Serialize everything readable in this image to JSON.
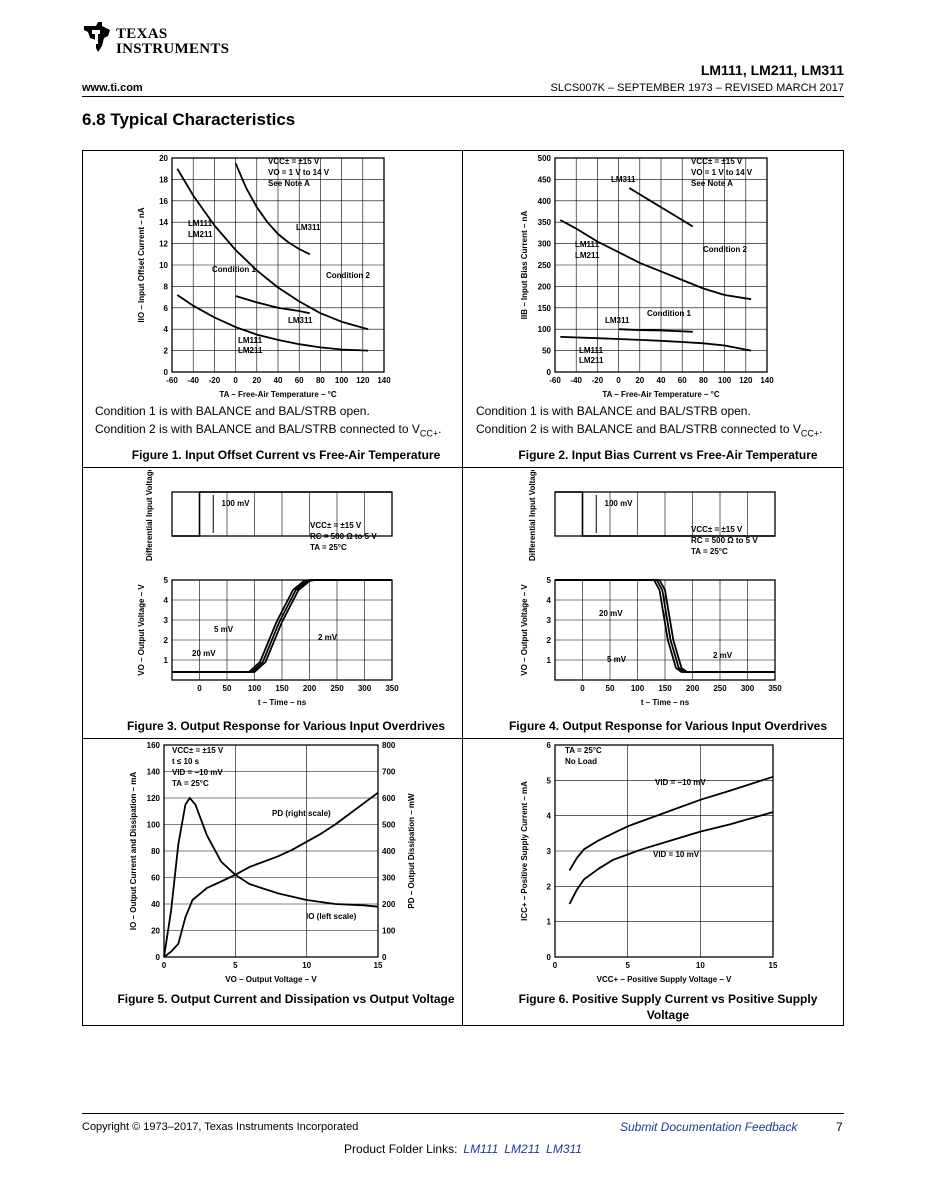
{
  "header": {
    "brand_line1": "TEXAS",
    "brand_line2": "INSTRUMENTS",
    "parts": "LM111, LM211, LM311",
    "site": "www.ti.com",
    "doc_id": "SLCS007K – SEPTEMBER 1973 – REVISED MARCH 2017"
  },
  "section_title": "6.8 Typical Characteristics",
  "figures": {
    "fig1": {
      "caption": "Figure 1. Input Offset Current vs Free-Air Temperature",
      "note1": "Condition 1 is with BALANCE and BAL/STRB open.",
      "note2_pre": "Condition 2 is with BALANCE and BAL/STRB connected to V",
      "note2_sub": "CC+",
      "note2_post": "."
    },
    "fig2": {
      "caption": "Figure 2. Input Bias Current vs Free-Air Temperature",
      "note1": "Condition 1 is with BALANCE and BAL/STRB open.",
      "note2_pre": "Condition 2 is with BALANCE and BAL/STRB connected to V",
      "note2_sub": "CC+",
      "note2_post": "."
    },
    "fig3": {
      "caption": "Figure 3. Output Response for Various Input Overdrives"
    },
    "fig4": {
      "caption": "Figure 4. Output Response for Various Input Overdrives"
    },
    "fig5": {
      "caption": "Figure 5. Output Current and Dissipation vs Output Voltage"
    },
    "fig6": {
      "caption_line1": "Figure 6. Positive Supply Current vs Positive Supply",
      "caption_line2": "Voltage"
    }
  },
  "chart_data": [
    {
      "id": "fig1",
      "type": "line",
      "xlabel": "TA – Free-Air Temperature – °C",
      "ylabel": "IIO – Input Offset Current – nA",
      "xlim": [
        -60,
        140
      ],
      "ylim": [
        0,
        20
      ],
      "xticks": [
        -60,
        -40,
        -20,
        0,
        20,
        40,
        60,
        80,
        100,
        120,
        140
      ],
      "yticks": [
        0,
        2,
        4,
        6,
        8,
        10,
        12,
        14,
        16,
        18,
        20
      ],
      "conditions": [
        "VCC± = ±15 V",
        "VO = 1 V to 14 V",
        "See Note A"
      ],
      "series": [
        {
          "name": "LM311 Condition 2",
          "x": [
            0,
            10,
            20,
            30,
            40,
            50,
            60,
            70
          ],
          "y": [
            19.5,
            17.2,
            15.4,
            14.0,
            12.9,
            12.1,
            11.5,
            11.0
          ]
        },
        {
          "name": "LM111/LM211 Condition 2",
          "x": [
            -55,
            -40,
            -20,
            0,
            20,
            40,
            60,
            80,
            100,
            125
          ],
          "y": [
            19,
            16.5,
            13.7,
            11.4,
            9.5,
            7.9,
            6.6,
            5.5,
            4.7,
            4.0
          ]
        },
        {
          "name": "LM311 Condition 1",
          "x": [
            0,
            20,
            40,
            60,
            70
          ],
          "y": [
            7.1,
            6.5,
            6.0,
            5.7,
            5.5
          ]
        },
        {
          "name": "LM111/LM211 Condition 1",
          "x": [
            -55,
            -40,
            -20,
            0,
            20,
            40,
            60,
            80,
            100,
            125
          ],
          "y": [
            7.2,
            6.2,
            5.1,
            4.2,
            3.5,
            3.0,
            2.6,
            2.3,
            2.1,
            2.0
          ]
        }
      ],
      "annotations": [
        "LM111",
        "LM211",
        "LM311",
        "Condition 1",
        "Condition 2",
        "LM311",
        "LM111",
        "LM211"
      ]
    },
    {
      "id": "fig2",
      "type": "line",
      "xlabel": "TA – Free-Air Temperature – °C",
      "ylabel": "IIB – Input Bias Current – nA",
      "xlim": [
        -60,
        140
      ],
      "ylim": [
        0,
        500
      ],
      "xticks": [
        -60,
        -40,
        -20,
        0,
        20,
        40,
        60,
        80,
        100,
        120,
        140
      ],
      "yticks": [
        0,
        50,
        100,
        150,
        200,
        250,
        300,
        350,
        400,
        450,
        500
      ],
      "conditions": [
        "VCC± = ±15 V",
        "VO = 1 V to 14 V",
        "See Note A"
      ],
      "series": [
        {
          "name": "LM311 Condition 2",
          "x": [
            10,
            30,
            50,
            70
          ],
          "y": [
            430,
            400,
            370,
            340
          ]
        },
        {
          "name": "LM111/LM211 Condition 2",
          "x": [
            -55,
            -40,
            -20,
            0,
            20,
            40,
            60,
            80,
            100,
            125
          ],
          "y": [
            355,
            335,
            305,
            280,
            255,
            235,
            215,
            195,
            180,
            170
          ]
        },
        {
          "name": "LM311 Condition 1",
          "x": [
            0,
            20,
            40,
            60,
            70
          ],
          "y": [
            100,
            98,
            97,
            95,
            94
          ]
        },
        {
          "name": "LM111/LM211 Condition 1",
          "x": [
            -55,
            -20,
            0,
            20,
            40,
            60,
            80,
            100,
            125
          ],
          "y": [
            82,
            79,
            77,
            75,
            73,
            70,
            67,
            62,
            50
          ]
        }
      ],
      "annotations": [
        "LM311",
        "LM111",
        "LM211",
        "Condition 2",
        "Condition 1",
        "LM311",
        "LM111",
        "LM211"
      ]
    },
    {
      "id": "fig3",
      "type": "line",
      "xlabel": "t – Time – ns",
      "ylabel": "VO – Output Voltage – V",
      "ylabel_top": "Differential Input Voltage",
      "xlim": [
        -50,
        350
      ],
      "ylim": [
        0,
        5
      ],
      "xticks": [
        0,
        50,
        100,
        150,
        200,
        250,
        300,
        350
      ],
      "yticks": [
        1,
        2,
        3,
        4,
        5
      ],
      "input_step": "100 mV",
      "conditions": [
        "VCC± = ±15 V",
        "RC = 500 Ω to 5 V",
        "TA = 25°C"
      ],
      "series": [
        {
          "name": "20 mV",
          "x": [
            -50,
            90,
            110,
            140,
            170,
            190,
            200,
            350
          ],
          "y": [
            0.4,
            0.4,
            0.9,
            2.9,
            4.5,
            4.95,
            5,
            5
          ]
        },
        {
          "name": "5 mV",
          "x": [
            -50,
            95,
            115,
            145,
            175,
            195,
            205,
            350
          ],
          "y": [
            0.4,
            0.4,
            0.9,
            2.9,
            4.5,
            4.95,
            5,
            5
          ]
        },
        {
          "name": "2 mV",
          "x": [
            -50,
            100,
            120,
            150,
            180,
            200,
            210,
            350
          ],
          "y": [
            0.4,
            0.4,
            0.9,
            2.9,
            4.5,
            4.95,
            5,
            5
          ]
        }
      ]
    },
    {
      "id": "fig4",
      "type": "line",
      "xlabel": "t – Time – ns",
      "ylabel": "VO – Output Voltage – V",
      "ylabel_top": "Differential Input Voltage",
      "xlim": [
        -50,
        350
      ],
      "ylim": [
        0,
        5
      ],
      "xticks": [
        0,
        50,
        100,
        150,
        200,
        250,
        300,
        350
      ],
      "yticks": [
        1,
        2,
        3,
        4,
        5
      ],
      "input_step": "100 mV",
      "conditions": [
        "VCC± = ±15 V",
        "RC = 500 Ω to 5 V",
        "TA = 25°C"
      ],
      "series": [
        {
          "name": "20 mV",
          "x": [
            -50,
            130,
            140,
            155,
            170,
            180,
            350
          ],
          "y": [
            5,
            5,
            4.5,
            2.0,
            0.6,
            0.4,
            0.4
          ]
        },
        {
          "name": "5 mV",
          "x": [
            -50,
            135,
            145,
            160,
            175,
            185,
            350
          ],
          "y": [
            5,
            5,
            4.5,
            2.0,
            0.6,
            0.4,
            0.4
          ]
        },
        {
          "name": "2 mV",
          "x": [
            -50,
            140,
            150,
            165,
            180,
            190,
            350
          ],
          "y": [
            5,
            5,
            4.5,
            2.0,
            0.6,
            0.4,
            0.4
          ]
        }
      ]
    },
    {
      "id": "fig5",
      "type": "line",
      "xlabel": "VO – Output Voltage – V",
      "ylabel": "IO – Output Current and Dissipation – mA",
      "ylabel_right": "PD – Output Dissipation – mW",
      "xlim": [
        0,
        15
      ],
      "ylim": [
        0,
        160
      ],
      "ylim_right": [
        0,
        800
      ],
      "xticks": [
        0,
        5,
        10,
        15
      ],
      "yticks": [
        0,
        20,
        40,
        60,
        80,
        100,
        120,
        140,
        160
      ],
      "yticks_right": [
        0,
        100,
        200,
        300,
        400,
        500,
        600,
        700,
        800
      ],
      "conditions": [
        "VCC± = ±15 V",
        "t ≤ 10 s",
        "VID = −10 mV",
        "TA = 25°C"
      ],
      "series": [
        {
          "name": "IO (left scale)",
          "x": [
            0,
            0.5,
            1,
            1.5,
            1.8,
            2.2,
            3,
            4,
            5,
            6,
            8,
            10,
            12,
            14,
            15
          ],
          "y": [
            0,
            35,
            85,
            115,
            120,
            115,
            92,
            72,
            62,
            55,
            48,
            43,
            40,
            39,
            38
          ]
        },
        {
          "name": "PD (right scale)",
          "x": [
            0,
            0.5,
            1,
            1.5,
            2,
            3,
            4,
            5,
            6,
            7,
            8,
            9,
            10,
            11,
            12,
            13,
            14,
            15
          ],
          "y": [
            0,
            20,
            50,
            150,
            215,
            260,
            285,
            310,
            340,
            360,
            380,
            405,
            435,
            465,
            500,
            540,
            580,
            620
          ]
        }
      ],
      "annotations": [
        "PD (right scale)",
        "IO (left scale)"
      ]
    },
    {
      "id": "fig6",
      "type": "line",
      "xlabel": "VCC+ – Positive Supply Voltage – V",
      "ylabel": "ICC+ – Positive Supply Current – mA",
      "xlim": [
        0,
        15
      ],
      "ylim": [
        0,
        6
      ],
      "xticks": [
        0,
        5,
        10,
        15
      ],
      "yticks": [
        0,
        1,
        2,
        3,
        4,
        5,
        6
      ],
      "conditions": [
        "TA = 25°C",
        "No Load"
      ],
      "series": [
        {
          "name": "VID = −10 mV",
          "x": [
            1,
            1.5,
            2,
            3,
            4,
            5,
            6,
            8,
            10,
            12,
            15
          ],
          "y": [
            2.45,
            2.8,
            3.05,
            3.3,
            3.5,
            3.7,
            3.85,
            4.15,
            4.45,
            4.7,
            5.1
          ]
        },
        {
          "name": "VID = 10 mV",
          "x": [
            1,
            1.5,
            2,
            3,
            4,
            5,
            6,
            8,
            10,
            12,
            15
          ],
          "y": [
            1.5,
            1.9,
            2.2,
            2.5,
            2.75,
            2.9,
            3.05,
            3.3,
            3.55,
            3.75,
            4.1
          ]
        }
      ]
    }
  ],
  "footer": {
    "copyright": "Copyright © 1973–2017, Texas Instruments Incorporated",
    "feedback": "Submit Documentation Feedback",
    "page": "7",
    "folder_label": "Product Folder Links:",
    "links": [
      "LM111",
      "LM211",
      "LM311"
    ]
  }
}
